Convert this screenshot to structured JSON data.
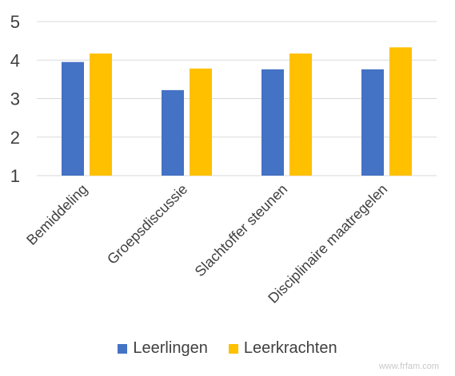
{
  "chart_data": {
    "type": "bar",
    "categories": [
      "Bemiddeling",
      "Groepsdiscussie",
      "Slachtoffer steunen",
      "Disciplinaire maatregelen"
    ],
    "series": [
      {
        "name": "Leerlingen",
        "values": [
          3.95,
          3.22,
          3.76,
          3.76
        ],
        "color": "#4472C4"
      },
      {
        "name": "Leerkrachten",
        "values": [
          4.17,
          3.78,
          4.17,
          4.33
        ],
        "color": "#FFC000"
      }
    ],
    "yticks": [
      1,
      2,
      3,
      4,
      5
    ],
    "ylim": [
      1,
      5
    ],
    "grid": true,
    "legend_position": "bottom",
    "title": "",
    "xlabel": "",
    "ylabel": ""
  },
  "watermark": "www.frfam.com"
}
